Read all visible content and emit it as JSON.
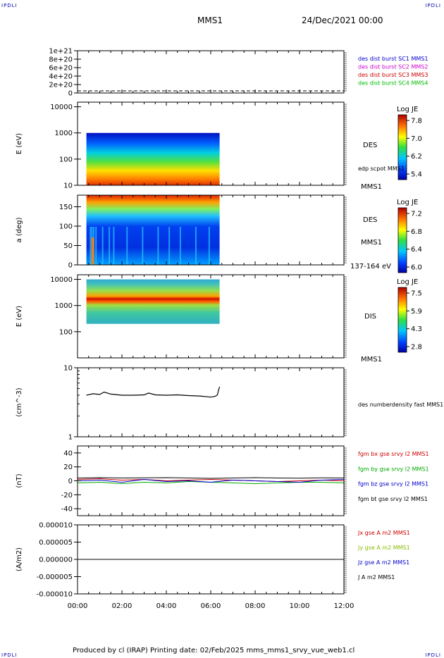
{
  "header": {
    "corner_label": "IPDLI",
    "spacecraft": "MMS1",
    "date": "24/Dec/2021 00:00"
  },
  "footer": {
    "text": "Produced by cl (IRAP)   Printing date: 02/Feb/2025   mms_mms1_srvy_vue_web1.cl"
  },
  "time_axis": {
    "ticks": [
      "00:00",
      "02:00",
      "04:00",
      "06:00",
      "08:00",
      "10:00",
      "12:00"
    ],
    "range_hours": [
      0,
      12
    ],
    "data_end_hours": 6.4
  },
  "chart_data": [
    {
      "type": "line",
      "panel": "burst",
      "ytick_labels": [
        "1e+21",
        "8e+20",
        "6e+20",
        "4e+20",
        "2e+20",
        "0"
      ],
      "ylim": [
        0,
        1e+21
      ],
      "series": [
        {
          "name": "des dist burst SC1 MMS1",
          "color": "#0000cc",
          "values": []
        },
        {
          "name": "des dist burst SC2 MMS2",
          "color": "#cc00cc",
          "values": []
        },
        {
          "name": "des dist burst SC3 MMS3",
          "color": "#cc0000",
          "values": []
        },
        {
          "name": "des dist burst SC4 MMS4",
          "color": "#00bb00",
          "values": []
        }
      ]
    },
    {
      "type": "heatmap",
      "panel": "des-energy",
      "ylabel": "E (eV)",
      "ytick_labels": [
        "10000",
        "1000",
        "100",
        "10"
      ],
      "ylim": [
        10,
        15000
      ],
      "yscale": "log",
      "x_range_hours": [
        0.4,
        6.4
      ],
      "y_range": [
        10,
        1000
      ],
      "colorbar": {
        "title": "Log JE",
        "ticks": [
          "7.8",
          "7.0",
          "6.2",
          "5.4"
        ],
        "range": [
          5.4,
          8.0
        ]
      },
      "labels": {
        "instrument": "DES",
        "overlay": "edp scpot MMS1",
        "spacecraft": "MMS1"
      }
    },
    {
      "type": "heatmap",
      "panel": "des-pitch",
      "ylabel": "a (deg)",
      "ytick_labels": [
        "150",
        "100",
        "50",
        "0"
      ],
      "ylim": [
        0,
        180
      ],
      "x_range_hours": [
        0.4,
        6.4
      ],
      "colorbar": {
        "title": "Log JE",
        "ticks": [
          "7.2",
          "6.8",
          "6.4",
          "6.0"
        ],
        "range": [
          6.0,
          7.4
        ]
      },
      "labels": {
        "instrument": "DES",
        "spacecraft": "MMS1",
        "energy_range": "137-164 eV"
      }
    },
    {
      "type": "heatmap",
      "panel": "dis-energy",
      "ylabel": "E (eV)",
      "ytick_labels": [
        "10000",
        "1000",
        "100"
      ],
      "ylim": [
        10,
        15000
      ],
      "yscale": "log",
      "x_range_hours": [
        0.4,
        6.4
      ],
      "y_range": [
        200,
        10000
      ],
      "colorbar": {
        "title": "Log JE",
        "ticks": [
          "7.5",
          "5.9",
          "4.3",
          "2.8"
        ],
        "range": [
          2.8,
          8.0
        ]
      },
      "labels": {
        "instrument": "DIS",
        "spacecraft": "MMS1"
      }
    },
    {
      "type": "line",
      "panel": "density",
      "ylabel": "(cm^-3)",
      "ytick_labels": [
        "10",
        "1"
      ],
      "ylim": [
        1,
        10
      ],
      "yscale": "log",
      "series": [
        {
          "name": "des numberdensity fast MMS1",
          "color": "#000000",
          "x": [
            0.4,
            0.7,
            1.0,
            1.2,
            1.5,
            2.0,
            2.5,
            3.0,
            3.2,
            3.5,
            4.0,
            4.5,
            5.0,
            5.5,
            6.0,
            6.2,
            6.3,
            6.35,
            6.4
          ],
          "values": [
            4.0,
            4.2,
            4.1,
            4.45,
            4.15,
            4.0,
            4.0,
            4.05,
            4.3,
            4.05,
            4.0,
            4.05,
            3.95,
            3.9,
            3.75,
            3.85,
            4.05,
            4.7,
            5.3
          ]
        }
      ]
    },
    {
      "type": "line",
      "panel": "fgm",
      "ylabel": "(nT)",
      "ytick_labels": [
        "40",
        "20",
        "0",
        "-20",
        "-40"
      ],
      "ylim": [
        -50,
        50
      ],
      "series": [
        {
          "name": "fgm bx gse srvy l2 MMS1",
          "color": "#cc0000",
          "x": [
            0,
            1,
            2,
            3,
            4,
            5,
            6,
            7,
            8,
            9,
            10,
            11,
            12
          ],
          "values": [
            2,
            3,
            1,
            2,
            0,
            1,
            2,
            1,
            0,
            -1,
            0,
            1,
            0
          ]
        },
        {
          "name": "fgm by gse srvy l2 MMS1",
          "color": "#00aa00",
          "x": [
            0,
            1,
            2,
            3,
            4,
            5,
            6,
            7,
            8,
            9,
            10,
            11,
            12
          ],
          "values": [
            -3,
            -2,
            -4,
            -2,
            -3,
            -1,
            -2,
            -3,
            -4,
            -3,
            -2,
            -2,
            -3
          ]
        },
        {
          "name": "fgm bz gse srvy l2 MMS1",
          "color": "#0000cc",
          "x": [
            0,
            1,
            2,
            3,
            4,
            5,
            6,
            7,
            8,
            9,
            10,
            11,
            12
          ],
          "values": [
            0,
            1,
            -2,
            2,
            -1,
            0,
            -2,
            1,
            0,
            -1,
            -2,
            1,
            2
          ]
        },
        {
          "name": "fgm bt gse srvy l2 MMS1",
          "color": "#000000",
          "x": [
            0,
            1,
            2,
            3,
            4,
            5,
            6,
            7,
            8,
            9,
            10,
            11,
            12
          ],
          "values": [
            4,
            4.5,
            4,
            4.2,
            4.5,
            4,
            3.5,
            4,
            4.5,
            4,
            3.8,
            4.2,
            4
          ]
        }
      ]
    },
    {
      "type": "line",
      "panel": "current",
      "ylabel": "(A/m2)",
      "ytick_labels": [
        "0.000010",
        "0.000005",
        "0.000000",
        "-0.000005",
        "-0.000010"
      ],
      "ylim": [
        -1e-05,
        1e-05
      ],
      "series": [
        {
          "name": "Jx gse A m2 MMS1",
          "color": "#cc0000",
          "values": []
        },
        {
          "name": "Jy gse A m2 MMS1",
          "color": "#88bb00",
          "values": []
        },
        {
          "name": "Jz gse A m2 MMS1",
          "color": "#0000cc",
          "values": []
        },
        {
          "name": "J A m2 MMS1",
          "color": "#000000",
          "x": [
            0,
            12
          ],
          "values": [
            0,
            0
          ]
        }
      ]
    }
  ]
}
